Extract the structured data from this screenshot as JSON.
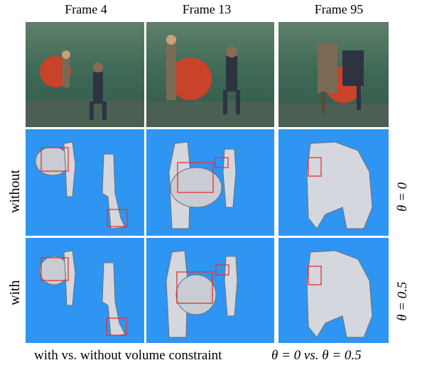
{
  "figure": {
    "columns": [
      "Frame 4",
      "Frame 13",
      "Frame 95"
    ],
    "rows": [
      "without",
      "with"
    ],
    "theta_labels": [
      "θ = 0",
      "θ = 0.5"
    ],
    "caption_left": "with vs. without volume constraint",
    "caption_right": "θ = 0 vs. θ = 0.5"
  },
  "colors": {
    "mesh_background": "#2f95f3",
    "highlight_box": "#e2342f",
    "studio_green": "#3f6a56",
    "ball": "#c9432b"
  }
}
